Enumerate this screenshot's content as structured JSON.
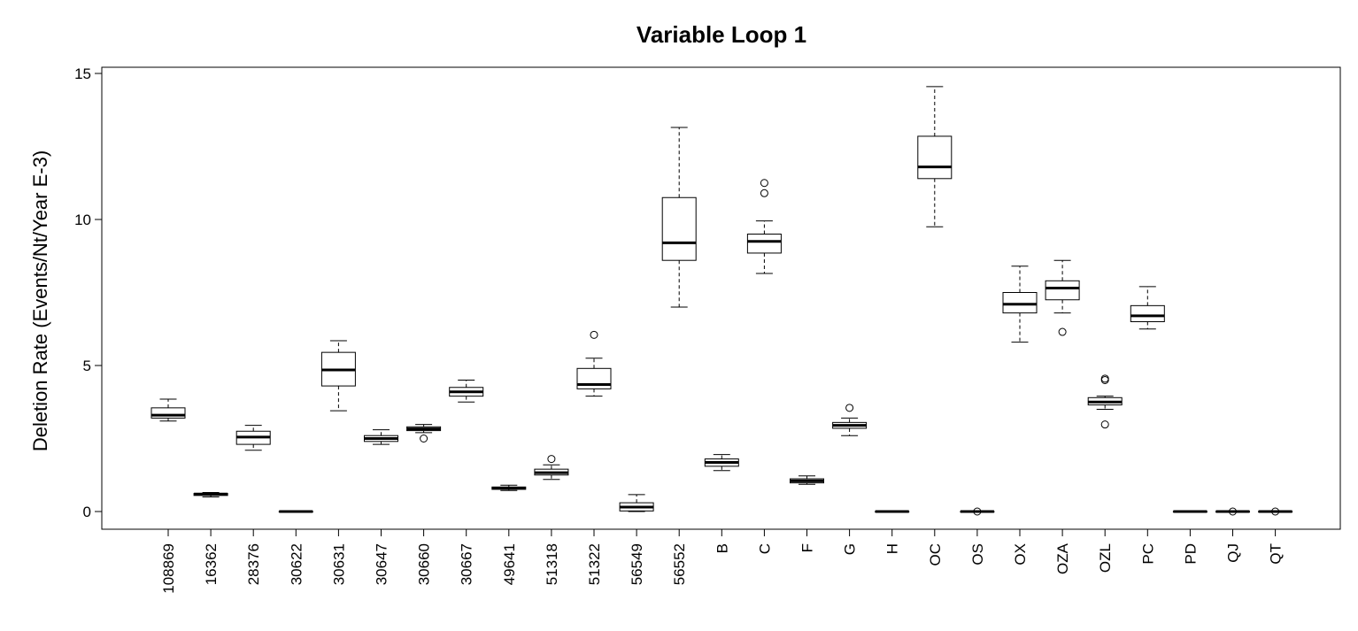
{
  "chart_data": {
    "type": "boxplot",
    "title": "Variable Loop 1",
    "xlabel": "",
    "ylabel": "Deletion Rate (Events/Nt/Year E-3)",
    "ylim": [
      -0.6,
      15.2
    ],
    "yticks": [
      0,
      5,
      10,
      15
    ],
    "grid": false,
    "legend": "none",
    "categories": [
      "108869",
      "16362",
      "28376",
      "30622",
      "30631",
      "30647",
      "30660",
      "30667",
      "49641",
      "51318",
      "51322",
      "56549",
      "56552",
      "B",
      "C",
      "F",
      "G",
      "H",
      "OC",
      "OS",
      "OX",
      "OZA",
      "OZL",
      "PC",
      "PD",
      "QJ",
      "QT"
    ],
    "boxes": [
      {
        "min": 3.1,
        "q1": 3.2,
        "median": 3.3,
        "q3": 3.55,
        "max": 3.85,
        "outliers": []
      },
      {
        "min": 0.5,
        "q1": 0.55,
        "median": 0.6,
        "q3": 0.62,
        "max": 0.65,
        "outliers": []
      },
      {
        "min": 2.1,
        "q1": 2.3,
        "median": 2.55,
        "q3": 2.75,
        "max": 2.95,
        "outliers": []
      },
      {
        "min": 0,
        "q1": 0,
        "median": 0,
        "q3": 0,
        "max": 0,
        "outliers": []
      },
      {
        "min": 3.45,
        "q1": 4.3,
        "median": 4.85,
        "q3": 5.45,
        "max": 5.85,
        "outliers": []
      },
      {
        "min": 2.3,
        "q1": 2.4,
        "median": 2.5,
        "q3": 2.6,
        "max": 2.8,
        "outliers": []
      },
      {
        "min": 2.7,
        "q1": 2.77,
        "median": 2.83,
        "q3": 2.9,
        "max": 2.98,
        "outliers": [
          2.5
        ]
      },
      {
        "min": 3.75,
        "q1": 3.95,
        "median": 4.1,
        "q3": 4.25,
        "max": 4.5,
        "outliers": []
      },
      {
        "min": 0.72,
        "q1": 0.76,
        "median": 0.8,
        "q3": 0.84,
        "max": 0.9,
        "outliers": []
      },
      {
        "min": 1.1,
        "q1": 1.25,
        "median": 1.33,
        "q3": 1.45,
        "max": 1.6,
        "outliers": [
          1.8
        ]
      },
      {
        "min": 3.95,
        "q1": 4.2,
        "median": 4.35,
        "q3": 4.9,
        "max": 5.25,
        "outliers": [
          6.05
        ]
      },
      {
        "min": 0,
        "q1": 0.02,
        "median": 0.15,
        "q3": 0.3,
        "max": 0.58,
        "outliers": []
      },
      {
        "min": 7.0,
        "q1": 8.6,
        "median": 9.2,
        "q3": 10.75,
        "max": 13.15,
        "outliers": []
      },
      {
        "min": 1.4,
        "q1": 1.55,
        "median": 1.68,
        "q3": 1.8,
        "max": 1.95,
        "outliers": []
      },
      {
        "min": 8.15,
        "q1": 8.85,
        "median": 9.25,
        "q3": 9.5,
        "max": 9.95,
        "outliers": [
          10.9,
          11.25
        ]
      },
      {
        "min": 0.93,
        "q1": 0.98,
        "median": 1.05,
        "q3": 1.12,
        "max": 1.22,
        "outliers": []
      },
      {
        "min": 2.6,
        "q1": 2.85,
        "median": 2.95,
        "q3": 3.05,
        "max": 3.2,
        "outliers": [
          3.55
        ]
      },
      {
        "min": 0,
        "q1": 0,
        "median": 0,
        "q3": 0,
        "max": 0,
        "outliers": []
      },
      {
        "min": 9.75,
        "q1": 11.4,
        "median": 11.8,
        "q3": 12.85,
        "max": 14.55,
        "outliers": []
      },
      {
        "min": 0,
        "q1": 0,
        "median": 0,
        "q3": 0,
        "max": 0,
        "outliers": [
          0
        ]
      },
      {
        "min": 5.8,
        "q1": 6.8,
        "median": 7.1,
        "q3": 7.5,
        "max": 8.4,
        "outliers": []
      },
      {
        "min": 6.8,
        "q1": 7.25,
        "median": 7.65,
        "q3": 7.9,
        "max": 8.6,
        "outliers": [
          6.15
        ]
      },
      {
        "min": 3.5,
        "q1": 3.65,
        "median": 3.75,
        "q3": 3.9,
        "max": 3.95,
        "outliers": [
          4.5,
          4.55,
          2.98
        ]
      },
      {
        "min": 6.25,
        "q1": 6.5,
        "median": 6.7,
        "q3": 7.05,
        "max": 7.7,
        "outliers": []
      },
      {
        "min": 0,
        "q1": 0,
        "median": 0,
        "q3": 0,
        "max": 0,
        "outliers": []
      },
      {
        "min": 0,
        "q1": 0,
        "median": 0,
        "q3": 0,
        "max": 0,
        "outliers": [
          0
        ]
      },
      {
        "min": 0,
        "q1": 0,
        "median": 0,
        "q3": 0,
        "max": 0,
        "outliers": [
          0
        ]
      }
    ]
  }
}
